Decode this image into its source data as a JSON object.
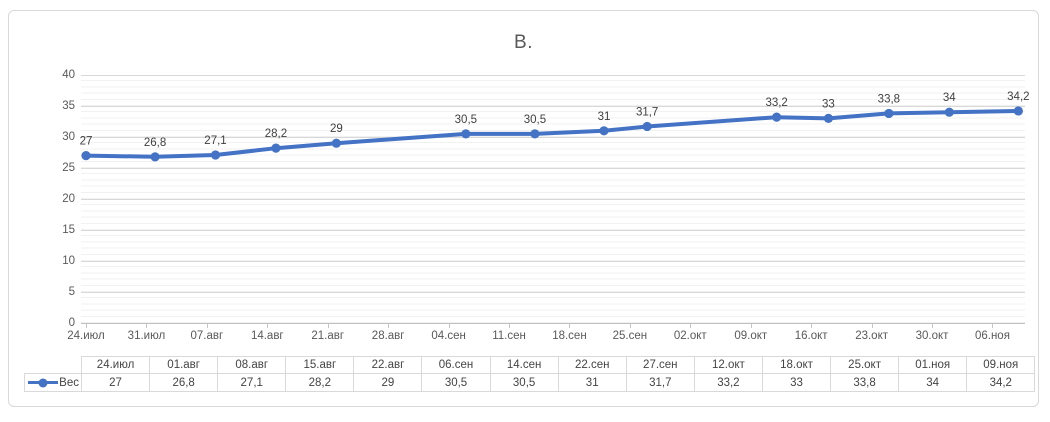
{
  "chart": {
    "title": "В.",
    "legend_label": "Вес"
  },
  "chart_data": {
    "type": "line",
    "title": "В.",
    "series": [
      {
        "name": "Вес",
        "values": [
          27,
          26.8,
          27.1,
          28.2,
          29,
          30.5,
          30.5,
          31,
          31.7,
          33.2,
          33,
          33.8,
          34,
          34.2
        ]
      }
    ],
    "categories": [
      "24.июл",
      "01.авг",
      "08.авг",
      "15.авг",
      "22.авг",
      "06.сен",
      "14.сен",
      "22.сен",
      "27.сен",
      "12.окт",
      "18.окт",
      "25.окт",
      "01.ноя",
      "09.ноя"
    ],
    "point_labels": [
      "27",
      "26,8",
      "27,1",
      "28,2",
      "29",
      "30,5",
      "30,5",
      "31",
      "31,7",
      "33,2",
      "33",
      "33,8",
      "34",
      "34,2"
    ],
    "category_day_offsets": [
      0,
      8,
      15,
      22,
      29,
      44,
      52,
      60,
      65,
      80,
      86,
      93,
      100,
      108
    ],
    "x_axis": {
      "type": "date",
      "tick_labels": [
        "24.июл",
        "31.июл",
        "07.авг",
        "14.авг",
        "21.авг",
        "28.авг",
        "04.сен",
        "11.сен",
        "18.сен",
        "25.сен",
        "02.окт",
        "09.окт",
        "16.окт",
        "23.окт",
        "30.окт",
        "06.ноя"
      ],
      "tick_day_offsets": [
        0,
        7,
        14,
        21,
        28,
        35,
        42,
        49,
        56,
        63,
        70,
        77,
        84,
        91,
        98,
        105
      ]
    },
    "y_axis": {
      "min": 0,
      "max": 40,
      "major_unit": 5,
      "minor_unit": 1,
      "ticks": [
        0,
        5,
        10,
        15,
        20,
        25,
        30,
        35,
        40
      ]
    },
    "grid": {
      "horizontal_major": true,
      "horizontal_minor": true,
      "vertical": false
    },
    "legend_position": "data-table-left",
    "colors": {
      "line": "#4472C4",
      "marker": "#4472C4",
      "axis_text": "#595959",
      "point_label_text": "#404040",
      "major_grid": "#D8D8D8",
      "minor_grid": "#F1F1F1",
      "axis_line": "#C0C0C0",
      "table_border": "#D9D9D9",
      "frame_border": "#D9D9D9",
      "title_text": "#595959"
    }
  },
  "data_table": {
    "series_label": "Вес",
    "columns": [
      "24.июл",
      "01.авг",
      "08.авг",
      "15.авг",
      "22.авг",
      "06.сен",
      "14.сен",
      "22.сен",
      "27.сен",
      "12.окт",
      "18.окт",
      "25.окт",
      "01.ноя",
      "09.ноя"
    ],
    "values": [
      "27",
      "26,8",
      "27,1",
      "28,2",
      "29",
      "30,5",
      "30,5",
      "31",
      "31,7",
      "33,2",
      "33",
      "33,8",
      "34",
      "34,2"
    ]
  }
}
